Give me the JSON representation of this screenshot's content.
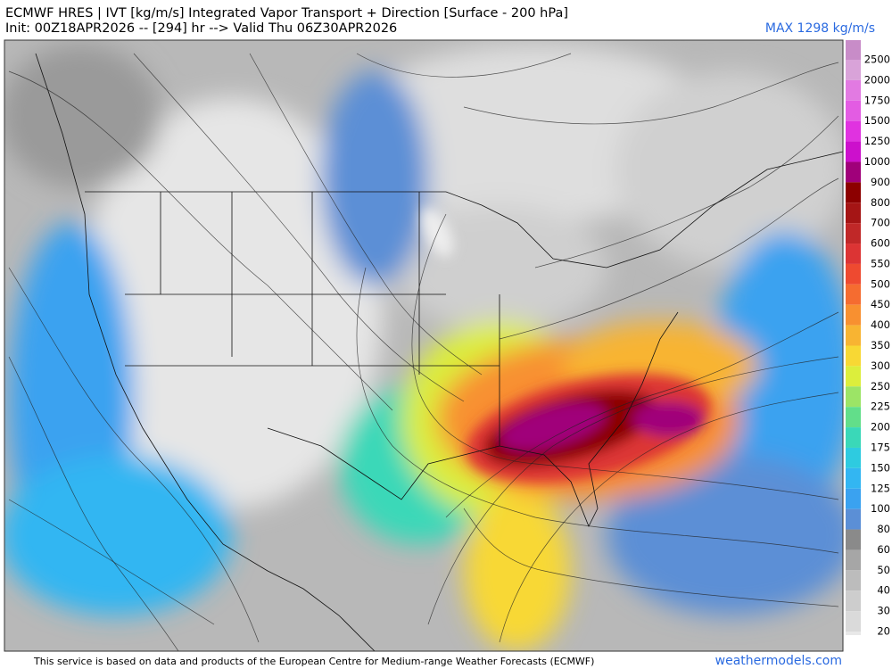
{
  "header": {
    "title": "ECMWF HRES | IVT [kg/m/s] Integrated Vapor Transport + Direction [Surface - 200 hPa]",
    "subtitle": "Init: 00Z18APR2026 -- [294] hr --> Valid Thu 06Z30APR2026",
    "max_label": "MAX 1298 kg/m/s"
  },
  "colorbar": {
    "levels": [
      2500,
      2000,
      1750,
      1500,
      1250,
      1000,
      900,
      800,
      700,
      600,
      550,
      500,
      450,
      400,
      350,
      300,
      250,
      225,
      200,
      175,
      150,
      125,
      100,
      80,
      60,
      50,
      40,
      30,
      20
    ],
    "colors": [
      "#d9a3d9",
      "#e27ae2",
      "#e35ce3",
      "#e032e0",
      "#cc10cc",
      "#a0007a",
      "#8c0000",
      "#a51515",
      "#c02828",
      "#dc3434",
      "#ee4a30",
      "#f56c30",
      "#f89030",
      "#f8b432",
      "#f8d834",
      "#dcee3c",
      "#9ce466",
      "#62de8a",
      "#3ad8b8",
      "#2ecbe0",
      "#33b6f2",
      "#3aa2f0",
      "#5b8fd6",
      "#8a8a8a",
      "#a6a6a6",
      "#bcbcbc",
      "#cdcdcd",
      "#dadada",
      "#e8e8e8"
    ],
    "top_color": "#c88cc8"
  },
  "footer": {
    "credit": "This service is based on data and products of the European Centre for Medium-range Weather Forecasts (ECMWF)",
    "site": "weathermodels.com"
  }
}
